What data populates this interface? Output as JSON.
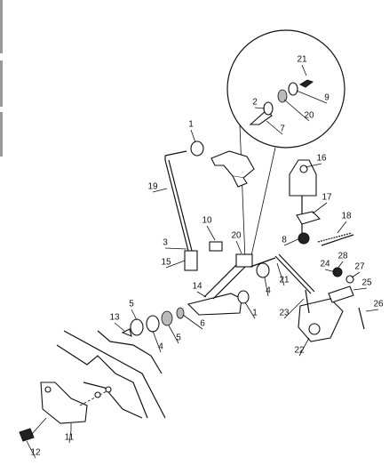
{
  "callouts": [
    "1",
    "21",
    "2",
    "9",
    "20",
    "7",
    "16",
    "19",
    "17",
    "18",
    "10",
    "20",
    "8",
    "3",
    "15",
    "24",
    "28",
    "27",
    "21",
    "14",
    "4",
    "25",
    "5",
    "1",
    "26",
    "23",
    "13",
    "6",
    "5",
    "4",
    "22",
    "11",
    "12"
  ]
}
